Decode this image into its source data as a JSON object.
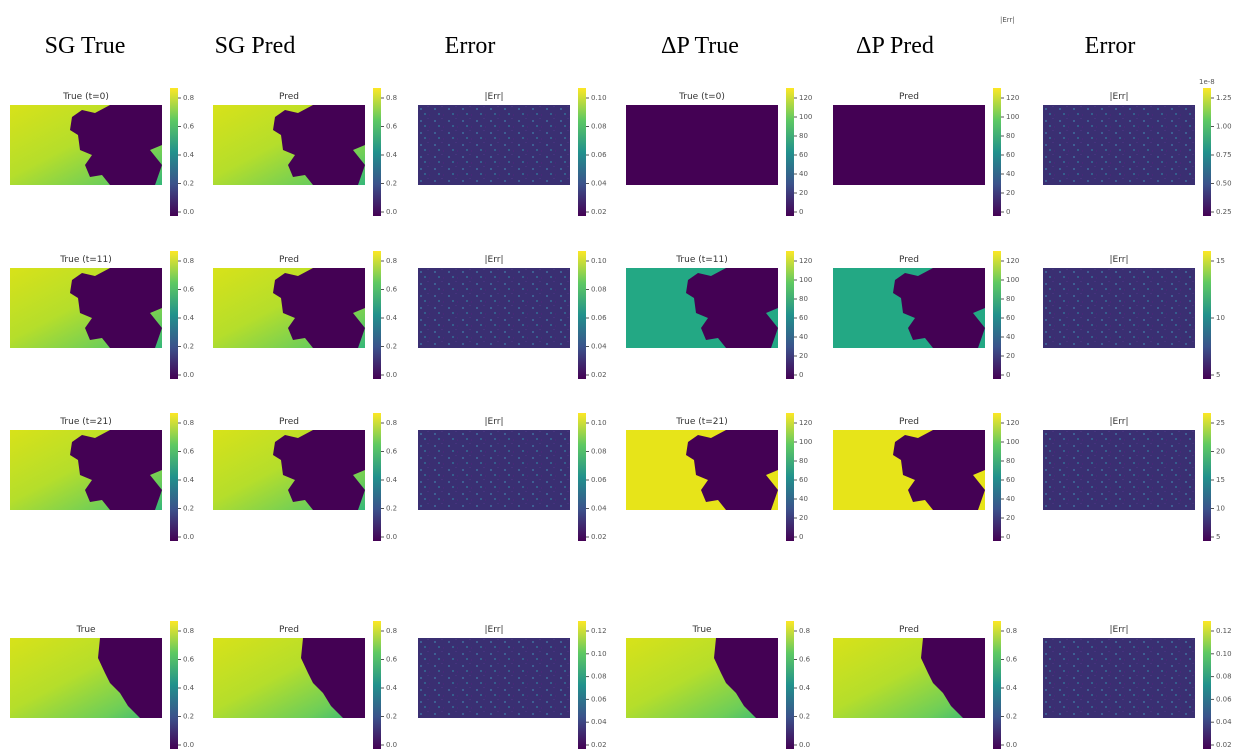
{
  "headers": [
    "SG True",
    "SG Pred",
    "Error",
    "ΔP True",
    "ΔP Pred",
    "Error"
  ],
  "stray_label": "|Err|",
  "exponent": "1e-8",
  "rows": [
    {
      "panels": [
        {
          "title": "True (t=0)",
          "ticks": [
            "0.0",
            "0.2",
            "0.4",
            "0.6",
            "0.8"
          ]
        },
        {
          "title": "Pred",
          "ticks": [
            "0.0",
            "0.2",
            "0.4",
            "0.6",
            "0.8"
          ]
        },
        {
          "title": "|Err|",
          "ticks": [
            "0.02",
            "0.04",
            "0.06",
            "0.08",
            "0.10"
          ]
        },
        {
          "title": "True (t=0)",
          "ticks": [
            "0",
            "20",
            "40",
            "60",
            "80",
            "100",
            "120"
          ]
        },
        {
          "title": "Pred",
          "ticks": [
            "0",
            "20",
            "40",
            "60",
            "80",
            "100",
            "120"
          ]
        },
        {
          "title": "|Err|",
          "ticks": [
            "0.25",
            "0.50",
            "0.75",
            "1.00",
            "1.25"
          ]
        }
      ]
    },
    {
      "panels": [
        {
          "title": "True (t=11)",
          "ticks": [
            "0.0",
            "0.2",
            "0.4",
            "0.6",
            "0.8"
          ]
        },
        {
          "title": "Pred",
          "ticks": [
            "0.0",
            "0.2",
            "0.4",
            "0.6",
            "0.8"
          ]
        },
        {
          "title": "|Err|",
          "ticks": [
            "0.02",
            "0.04",
            "0.06",
            "0.08",
            "0.10"
          ]
        },
        {
          "title": "True (t=11)",
          "ticks": [
            "0",
            "20",
            "40",
            "60",
            "80",
            "100",
            "120"
          ]
        },
        {
          "title": "Pred",
          "ticks": [
            "0",
            "20",
            "40",
            "60",
            "80",
            "100",
            "120"
          ]
        },
        {
          "title": "|Err|",
          "ticks": [
            "5",
            "10",
            "15"
          ]
        }
      ]
    },
    {
      "panels": [
        {
          "title": "True (t=21)",
          "ticks": [
            "0.0",
            "0.2",
            "0.4",
            "0.6",
            "0.8"
          ]
        },
        {
          "title": "Pred",
          "ticks": [
            "0.0",
            "0.2",
            "0.4",
            "0.6",
            "0.8"
          ]
        },
        {
          "title": "|Err|",
          "ticks": [
            "0.02",
            "0.04",
            "0.06",
            "0.08",
            "0.10"
          ]
        },
        {
          "title": "True (t=21)",
          "ticks": [
            "0",
            "20",
            "40",
            "60",
            "80",
            "100",
            "120"
          ]
        },
        {
          "title": "Pred",
          "ticks": [
            "0",
            "20",
            "40",
            "60",
            "80",
            "100",
            "120"
          ]
        },
        {
          "title": "|Err|",
          "ticks": [
            "5",
            "10",
            "15",
            "20",
            "25"
          ]
        }
      ]
    },
    {
      "panels": [
        {
          "title": "True",
          "ticks": [
            "0.0",
            "0.2",
            "0.4",
            "0.6",
            "0.8"
          ]
        },
        {
          "title": "Pred",
          "ticks": [
            "0.0",
            "0.2",
            "0.4",
            "0.6",
            "0.8"
          ]
        },
        {
          "title": "|Err|",
          "ticks": [
            "0.02",
            "0.04",
            "0.06",
            "0.08",
            "0.10",
            "0.12"
          ]
        },
        {
          "title": "True",
          "ticks": [
            "0.0",
            "0.2",
            "0.4",
            "0.6",
            "0.8"
          ]
        },
        {
          "title": "Pred",
          "ticks": [
            "0.0",
            "0.2",
            "0.4",
            "0.6",
            "0.8"
          ]
        },
        {
          "title": "|Err|",
          "ticks": [
            "0.02",
            "0.04",
            "0.06",
            "0.08",
            "0.10",
            "0.12"
          ]
        }
      ]
    }
  ]
}
